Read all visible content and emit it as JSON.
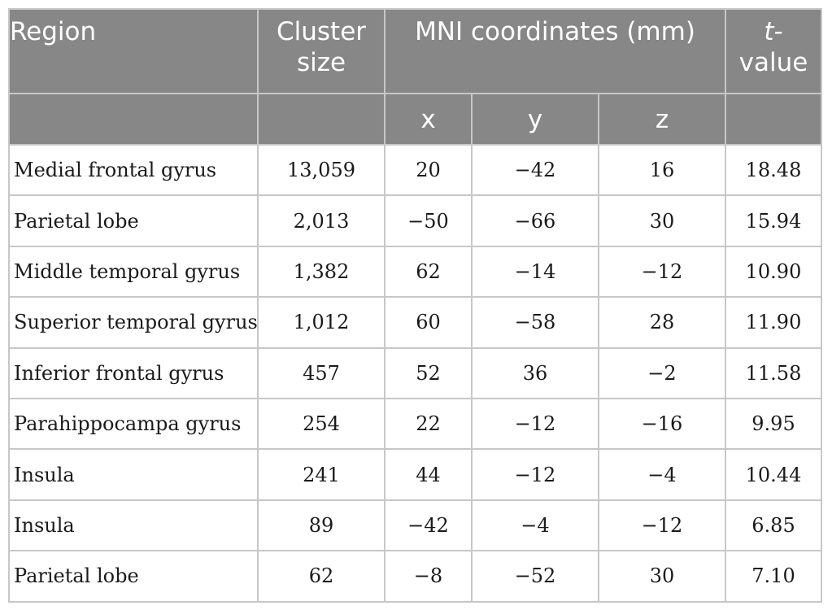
{
  "header": {
    "region": "Region",
    "cluster_line1": "Cluster",
    "cluster_line2": "size",
    "mni": "MNI coordinates (mm)",
    "t_line1": "t-",
    "t_line2": "value",
    "x": "x",
    "y": "y",
    "z": "z"
  },
  "rows": [
    {
      "region": "Medial frontal gyrus",
      "cluster": "13,059",
      "x": "20",
      "y": "−42",
      "z": "16",
      "t": "18.48"
    },
    {
      "region": "Parietal lobe",
      "cluster": "2,013",
      "x": "−50",
      "y": "−66",
      "z": "30",
      "t": "15.94"
    },
    {
      "region": "Middle temporal gyrus",
      "cluster": "1,382",
      "x": "62",
      "y": "−14",
      "z": "−12",
      "t": "10.90"
    },
    {
      "region": "Superior temporal gyrus",
      "cluster": "1,012",
      "x": "60",
      "y": "−58",
      "z": "28",
      "t": "11.90"
    },
    {
      "region": "Inferior frontal gyrus",
      "cluster": "457",
      "x": "52",
      "y": "36",
      "z": "−2",
      "t": "11.58"
    },
    {
      "region": "Parahippocampa gyrus",
      "cluster": "254",
      "x": "22",
      "y": "−12",
      "z": "−16",
      "t": "9.95"
    },
    {
      "region": "Insula",
      "cluster": "241",
      "x": "44",
      "y": "−12",
      "z": "−4",
      "t": "10.44"
    },
    {
      "region": "Insula",
      "cluster": "89",
      "x": "−42",
      "y": "−4",
      "z": "−12",
      "t": "6.85"
    },
    {
      "region": "Parietal lobe",
      "cluster": "62",
      "x": "−8",
      "y": "−52",
      "z": "30",
      "t": "7.10"
    }
  ]
}
